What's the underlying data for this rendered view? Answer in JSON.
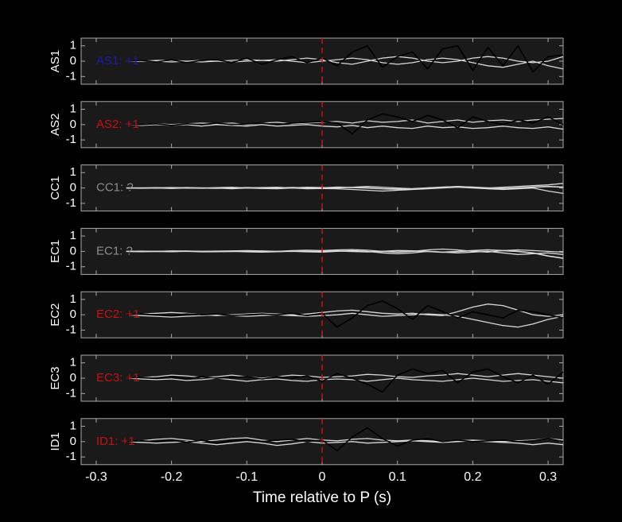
{
  "chart_data": [
    {
      "type": "line",
      "ylabel": "AS1",
      "annotation": "AS1: +1",
      "annotation_color": "#1a1ab4",
      "x": [
        -0.26,
        -0.24,
        -0.22,
        -0.2,
        -0.18,
        -0.16,
        -0.14,
        -0.12,
        -0.1,
        -0.08,
        -0.06,
        -0.04,
        -0.02,
        0,
        0.02,
        0.04,
        0.06,
        0.08,
        0.1,
        0.12,
        0.14,
        0.16,
        0.18,
        0.2,
        0.22,
        0.24,
        0.26,
        0.28,
        0.3,
        0.32
      ],
      "xlim": [
        -0.32,
        0.32
      ],
      "xticks": [
        -0.3,
        -0.2,
        -0.1,
        0,
        0.1,
        0.2,
        0.3
      ],
      "ylim": [
        -1.5,
        1.5
      ],
      "yticks": [
        -1,
        0,
        1
      ],
      "vline": 0,
      "vline_color": "#d01010",
      "series": [
        {
          "color": "#d8d8d8",
          "values": [
            0,
            0,
            0.05,
            0.05,
            0,
            -0.05,
            0,
            0.05,
            0.1,
            0.05,
            0,
            0.1,
            0.2,
            0.1,
            -0.1,
            -0.2,
            0,
            0.2,
            0.3,
            0.2,
            0,
            -0.1,
            0,
            0.2,
            0.3,
            0.2,
            0,
            -0.1,
            0,
            0.3
          ]
        },
        {
          "color": "#d8d8d8",
          "values": [
            0,
            0,
            0,
            -0.05,
            0,
            0.05,
            0,
            -0.05,
            0,
            0.05,
            0.1,
            0,
            -0.1,
            0,
            0.1,
            0.2,
            0.1,
            -0.1,
            -0.2,
            -0.1,
            0.1,
            0.2,
            0.1,
            -0.1,
            -0.3,
            -0.4,
            -0.2,
            0,
            -0.3,
            -0.5
          ]
        },
        {
          "color": "#000000",
          "values": [
            0,
            0.05,
            -0.05,
            0.1,
            -0.1,
            0.05,
            0.1,
            -0.1,
            0.2,
            -0.2,
            0.1,
            0.3,
            -0.1,
            0.2,
            -0.3,
            0.6,
            1,
            -0.4,
            0.3,
            0.6,
            -0.5,
            0.8,
            1,
            -0.6,
            0.9,
            -0.3,
            1,
            -0.7,
            0.3,
            0.4
          ]
        }
      ]
    },
    {
      "type": "line",
      "ylabel": "AS2",
      "annotation": "AS2: +1",
      "annotation_color": "#c81010",
      "x": [
        -0.26,
        -0.24,
        -0.22,
        -0.2,
        -0.18,
        -0.16,
        -0.14,
        -0.12,
        -0.1,
        -0.08,
        -0.06,
        -0.04,
        -0.02,
        0,
        0.02,
        0.04,
        0.06,
        0.08,
        0.1,
        0.12,
        0.14,
        0.16,
        0.18,
        0.2,
        0.22,
        0.24,
        0.26,
        0.28,
        0.3,
        0.32
      ],
      "xlim": [
        -0.32,
        0.32
      ],
      "xticks": [
        -0.3,
        -0.2,
        -0.1,
        0,
        0.1,
        0.2,
        0.3
      ],
      "ylim": [
        -1.5,
        1.5
      ],
      "yticks": [
        -1,
        0,
        1
      ],
      "vline": 0,
      "vline_color": "#d01010",
      "series": [
        {
          "color": "#d8d8d8",
          "values": [
            0,
            0,
            0.05,
            0,
            0.05,
            0.1,
            0.05,
            0.1,
            0,
            0.1,
            0.15,
            0.05,
            0.1,
            0.15,
            0.2,
            0.1,
            0.25,
            0.15,
            0.2,
            0.3,
            0.1,
            0.2,
            0.3,
            0.15,
            0.25,
            0.3,
            0.2,
            0.3,
            0.35,
            0.4
          ]
        },
        {
          "color": "#d8d8d8",
          "values": [
            0,
            -0.05,
            0,
            -0.05,
            0,
            -0.1,
            0,
            -0.05,
            -0.1,
            0,
            -0.1,
            -0.05,
            0,
            -0.1,
            -0.15,
            -0.05,
            -0.2,
            -0.1,
            -0.2,
            -0.25,
            -0.1,
            -0.2,
            -0.15,
            -0.25,
            -0.2,
            -0.1,
            -0.2,
            -0.25,
            -0.15,
            -0.3
          ]
        },
        {
          "color": "#000000",
          "values": [
            0,
            0,
            0.05,
            -0.05,
            0.05,
            0,
            0.1,
            0,
            0.05,
            0.1,
            0,
            0.1,
            0.15,
            0.2,
            0.1,
            -0.6,
            0.3,
            0.7,
            0.5,
            0.2,
            0.6,
            0.3,
            -0.2,
            0.5,
            0.2,
            0,
            0.3,
            0.1,
            0.5,
            0
          ]
        }
      ]
    },
    {
      "type": "line",
      "ylabel": "CC1",
      "annotation": "CC1: ?",
      "annotation_color": "#8c8c8c",
      "x": [
        -0.26,
        -0.24,
        -0.22,
        -0.2,
        -0.18,
        -0.16,
        -0.14,
        -0.12,
        -0.1,
        -0.08,
        -0.06,
        -0.04,
        -0.02,
        0,
        0.02,
        0.04,
        0.06,
        0.08,
        0.1,
        0.12,
        0.14,
        0.16,
        0.18,
        0.2,
        0.22,
        0.24,
        0.26,
        0.28,
        0.3,
        0.32
      ],
      "xlim": [
        -0.32,
        0.32
      ],
      "xticks": [
        -0.3,
        -0.2,
        -0.1,
        0,
        0.1,
        0.2,
        0.3
      ],
      "ylim": [
        -1.5,
        1.5
      ],
      "yticks": [
        -1,
        0,
        1
      ],
      "vline": 0,
      "vline_color": "#d01010",
      "series": [
        {
          "color": "#d8d8d8",
          "values": [
            0,
            0,
            0.02,
            0,
            0.03,
            0,
            0.02,
            0.05,
            0,
            0.03,
            0.05,
            0,
            0.05,
            0.03,
            0,
            0.05,
            0.1,
            0.05,
            0,
            -0.05,
            0,
            0.05,
            0.1,
            0.05,
            0,
            0.05,
            0.1,
            0.15,
            0.2,
            0.3
          ]
        },
        {
          "color": "#d8d8d8",
          "values": [
            0,
            -0.02,
            0,
            -0.03,
            0,
            -0.02,
            0,
            -0.05,
            0,
            -0.03,
            -0.05,
            0,
            -0.05,
            -0.03,
            -0.05,
            -0.1,
            -0.15,
            -0.2,
            -0.15,
            -0.1,
            -0.05,
            0,
            0.05,
            0,
            -0.05,
            -0.1,
            -0.05,
            0,
            -0.2,
            -0.35
          ]
        },
        {
          "color": "#d8d8d8",
          "values": [
            0,
            0,
            0,
            0.02,
            0,
            0,
            -0.02,
            0,
            0.02,
            0,
            0,
            0.03,
            0,
            0,
            0.05,
            0.03,
            0,
            -0.05,
            -0.08,
            -0.05,
            0,
            0.05,
            0.08,
            0.05,
            0,
            -0.03,
            0,
            0.05,
            0.1,
            0.05
          ]
        }
      ]
    },
    {
      "type": "line",
      "ylabel": "EC1",
      "annotation": "EC1: ?",
      "annotation_color": "#8c8c8c",
      "x": [
        -0.26,
        -0.24,
        -0.22,
        -0.2,
        -0.18,
        -0.16,
        -0.14,
        -0.12,
        -0.1,
        -0.08,
        -0.06,
        -0.04,
        -0.02,
        0,
        0.02,
        0.04,
        0.06,
        0.08,
        0.1,
        0.12,
        0.14,
        0.16,
        0.18,
        0.2,
        0.22,
        0.24,
        0.26,
        0.28,
        0.3,
        0.32
      ],
      "xlim": [
        -0.32,
        0.32
      ],
      "xticks": [
        -0.3,
        -0.2,
        -0.1,
        0,
        0.1,
        0.2,
        0.3
      ],
      "ylim": [
        -1.5,
        1.5
      ],
      "yticks": [
        -1,
        0,
        1
      ],
      "vline": 0,
      "vline_color": "#d01010",
      "series": [
        {
          "color": "#d8d8d8",
          "values": [
            0,
            0.02,
            0,
            0.03,
            0.02,
            0,
            0.02,
            0.03,
            0.05,
            0.03,
            0,
            0.05,
            0.08,
            0.05,
            0.1,
            0.12,
            0.08,
            0,
            -0.05,
            0,
            0.1,
            0.15,
            0.1,
            0,
            -0.05,
            0.05,
            0.1,
            0.05,
            0,
            -0.05
          ]
        },
        {
          "color": "#d8d8d8",
          "values": [
            0,
            -0.02,
            0,
            -0.02,
            0,
            -0.03,
            -0.02,
            0,
            -0.03,
            -0.05,
            -0.02,
            0,
            -0.03,
            -0.05,
            0,
            0.05,
            0,
            -0.1,
            -0.15,
            -0.1,
            0,
            -0.05,
            -0.1,
            -0.05,
            0,
            -0.1,
            -0.2,
            -0.15,
            -0.1,
            -0.2
          ]
        },
        {
          "color": "#d8d8d8",
          "values": [
            0,
            0,
            0,
            0,
            0.02,
            0,
            0,
            0,
            0.02,
            0,
            0,
            0.02,
            0,
            0,
            0.03,
            0,
            -0.03,
            0,
            0.05,
            0.03,
            0,
            -0.05,
            0,
            0.05,
            0.1,
            0.05,
            0,
            -0.1,
            -0.3,
            -0.45
          ]
        }
      ]
    },
    {
      "type": "line",
      "ylabel": "EC2",
      "annotation": "EC2: +1",
      "annotation_color": "#c81010",
      "x": [
        -0.26,
        -0.24,
        -0.22,
        -0.2,
        -0.18,
        -0.16,
        -0.14,
        -0.12,
        -0.1,
        -0.08,
        -0.06,
        -0.04,
        -0.02,
        0,
        0.02,
        0.04,
        0.06,
        0.08,
        0.1,
        0.12,
        0.14,
        0.16,
        0.18,
        0.2,
        0.22,
        0.24,
        0.26,
        0.28,
        0.3,
        0.32
      ],
      "xlim": [
        -0.32,
        0.32
      ],
      "xticks": [
        -0.3,
        -0.2,
        -0.1,
        0,
        0.1,
        0.2,
        0.3
      ],
      "ylim": [
        -1.5,
        1.5
      ],
      "yticks": [
        -1,
        0,
        1
      ],
      "vline": 0,
      "vline_color": "#d01010",
      "series": [
        {
          "color": "#d8d8d8",
          "values": [
            0,
            0.05,
            0.1,
            0.15,
            0.1,
            0,
            -0.05,
            0,
            0.05,
            0.1,
            0.05,
            0,
            0.05,
            0.15,
            0.25,
            0.3,
            0.2,
            0.1,
            0.05,
            0.1,
            0,
            -0.05,
            0.2,
            0.5,
            0.7,
            0.6,
            0.3,
            0,
            -0.1,
            0
          ]
        },
        {
          "color": "#d8d8d8",
          "values": [
            0,
            -0.05,
            -0.1,
            -0.15,
            -0.1,
            -0.05,
            0,
            -0.05,
            -0.1,
            -0.05,
            0,
            -0.05,
            -0.1,
            -0.05,
            0,
            0.1,
            0,
            -0.1,
            -0.05,
            0,
            0.05,
            0,
            -0.1,
            -0.3,
            -0.5,
            -0.7,
            -0.8,
            -0.6,
            -0.3,
            -0.1
          ]
        },
        {
          "color": "#000000",
          "values": [
            0,
            0.05,
            0,
            -0.05,
            0.05,
            0,
            0.05,
            -0.05,
            0,
            0.05,
            0,
            0.1,
            -0.05,
            0.1,
            -0.8,
            -0.2,
            0.6,
            0.9,
            0.4,
            -0.3,
            0.6,
            0.2,
            -0.2,
            0.2,
            0,
            -0.2,
            0.3,
            0.2,
            0,
            -0.2
          ]
        }
      ]
    },
    {
      "type": "line",
      "ylabel": "EC3",
      "annotation": "EC3: +1",
      "annotation_color": "#c81010",
      "x": [
        -0.26,
        -0.24,
        -0.22,
        -0.2,
        -0.18,
        -0.16,
        -0.14,
        -0.12,
        -0.1,
        -0.08,
        -0.06,
        -0.04,
        -0.02,
        0,
        0.02,
        0.04,
        0.06,
        0.08,
        0.1,
        0.12,
        0.14,
        0.16,
        0.18,
        0.2,
        0.22,
        0.24,
        0.26,
        0.28,
        0.3,
        0.32
      ],
      "xlim": [
        -0.32,
        0.32
      ],
      "xticks": [
        -0.3,
        -0.2,
        -0.1,
        0,
        0.1,
        0.2,
        0.3
      ],
      "ylim": [
        -1.5,
        1.5
      ],
      "yticks": [
        -1,
        0,
        1
      ],
      "vline": 0,
      "vline_color": "#d01010",
      "series": [
        {
          "color": "#d8d8d8",
          "values": [
            0,
            0.05,
            0.1,
            0.2,
            0.15,
            0.05,
            0.1,
            0.2,
            0.1,
            0,
            0.1,
            0.2,
            0.15,
            0.05,
            0.1,
            0.15,
            0.25,
            0.2,
            0.1,
            0.05,
            0.15,
            0.2,
            0.3,
            0.2,
            0.1,
            0.2,
            0.3,
            0.2,
            0.1,
            0
          ]
        },
        {
          "color": "#d8d8d8",
          "values": [
            0,
            -0.05,
            -0.1,
            -0.05,
            -0.15,
            -0.1,
            0,
            -0.1,
            -0.2,
            -0.1,
            -0.05,
            -0.15,
            -0.2,
            -0.1,
            -0.05,
            -0.1,
            -0.2,
            -0.1,
            0,
            -0.1,
            -0.15,
            -0.2,
            -0.1,
            0,
            -0.1,
            -0.2,
            -0.15,
            -0.1,
            -0.2,
            -0.3
          ]
        },
        {
          "color": "#000000",
          "values": [
            0,
            0.05,
            0,
            0.1,
            -0.05,
            0.1,
            0,
            0.05,
            0.1,
            -0.05,
            0.1,
            0,
            0.15,
            -0.2,
            0.3,
            0,
            -0.4,
            -0.9,
            0.2,
            0.6,
            0.3,
            0.5,
            -0.3,
            0.4,
            0.6,
            0.1,
            -0.3,
            0.2,
            -0.4,
            0.4
          ]
        }
      ]
    },
    {
      "type": "line",
      "ylabel": "ID1",
      "annotation": "ID1: +1",
      "annotation_color": "#c81010",
      "xlabel": "Time relative to P (s)",
      "x": [
        -0.26,
        -0.24,
        -0.22,
        -0.2,
        -0.18,
        -0.16,
        -0.14,
        -0.12,
        -0.1,
        -0.08,
        -0.06,
        -0.04,
        -0.02,
        0,
        0.02,
        0.04,
        0.06,
        0.08,
        0.1,
        0.12,
        0.14,
        0.16,
        0.18,
        0.2,
        0.22,
        0.24,
        0.26,
        0.28,
        0.3,
        0.32
      ],
      "xlim": [
        -0.32,
        0.32
      ],
      "xticks": [
        -0.3,
        -0.2,
        -0.1,
        0,
        0.1,
        0.2,
        0.3
      ],
      "ylim": [
        -1.5,
        1.5
      ],
      "yticks": [
        -1,
        0,
        1
      ],
      "vline": 0,
      "vline_color": "#d01010",
      "series": [
        {
          "color": "#d8d8d8",
          "values": [
            0,
            0.05,
            0.15,
            0.2,
            0.1,
            0,
            0.1,
            0.2,
            0.25,
            0.1,
            0,
            0.1,
            0.2,
            0.1,
            0.05,
            0.15,
            0.2,
            0.1,
            0.05,
            0.1,
            0.05,
            0,
            0.05,
            0.1,
            0.05,
            0,
            0.05,
            0.1,
            0.2,
            0.1
          ]
        },
        {
          "color": "#d8d8d8",
          "values": [
            0,
            -0.05,
            -0.1,
            -0.05,
            0,
            -0.1,
            -0.2,
            -0.1,
            0,
            -0.1,
            -0.25,
            -0.15,
            0,
            -0.1,
            -0.05,
            0,
            -0.1,
            -0.05,
            0,
            0.05,
            0,
            -0.05,
            0,
            0.05,
            0,
            -0.05,
            -0.1,
            -0.2,
            -0.1,
            -0.2
          ]
        },
        {
          "color": "#000000",
          "values": [
            0,
            0.05,
            0,
            0.1,
            -0.05,
            0.1,
            -0.1,
            0.05,
            0.1,
            0,
            0.1,
            0.15,
            0,
            0.1,
            -0.6,
            0.3,
            0.9,
            0.2,
            -0.3,
            0.1,
            0.2,
            0,
            0.1,
            0,
            0.05,
            0.1,
            0,
            0.05,
            0.2,
            0
          ]
        }
      ]
    }
  ]
}
